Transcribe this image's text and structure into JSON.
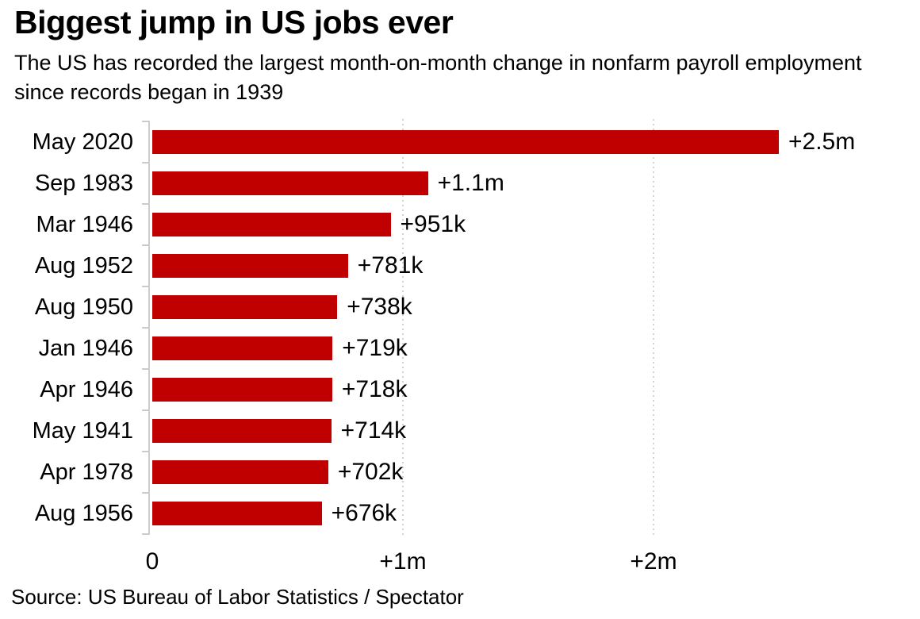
{
  "chart_data": {
    "type": "bar",
    "orientation": "horizontal",
    "title": "Biggest jump in US jobs ever",
    "subtitle": "The US has recorded the largest month-on-month change in nonfarm payroll employment since records began in 1939",
    "source": "Source: US Bureau of Labor Statistics / Spectator",
    "bar_color": "#c00000",
    "axis_color": "#cccccc",
    "gridline_style": "dotted vertical lines at +1m and +2m",
    "xlim_thousands": [
      0,
      2700
    ],
    "x_ticks": [
      {
        "label": "0",
        "value_thousands": 0
      },
      {
        "label": "+1m",
        "value_thousands": 1000
      },
      {
        "label": "+2m",
        "value_thousands": 2000
      }
    ],
    "rows": [
      {
        "category": "May 2020",
        "value_thousands": 2500,
        "value_label": "+2.5m"
      },
      {
        "category": "Sep 1983",
        "value_thousands": 1100,
        "value_label": "+1.1m"
      },
      {
        "category": "Mar 1946",
        "value_thousands": 951,
        "value_label": "+951k"
      },
      {
        "category": "Aug 1952",
        "value_thousands": 781,
        "value_label": "+781k"
      },
      {
        "category": "Aug 1950",
        "value_thousands": 738,
        "value_label": "+738k"
      },
      {
        "category": "Jan 1946",
        "value_thousands": 719,
        "value_label": "+719k"
      },
      {
        "category": "Apr 1946",
        "value_thousands": 718,
        "value_label": "+718k"
      },
      {
        "category": "May 1941",
        "value_thousands": 714,
        "value_label": "+714k"
      },
      {
        "category": "Apr 1978",
        "value_thousands": 702,
        "value_label": "+702k"
      },
      {
        "category": "Aug 1956",
        "value_thousands": 676,
        "value_label": "+676k"
      }
    ]
  }
}
